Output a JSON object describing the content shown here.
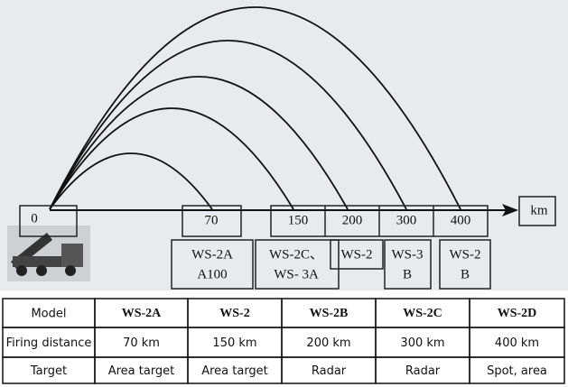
{
  "diagram": {
    "ranges": [
      "0",
      "70",
      "150",
      "200",
      "300",
      "400"
    ],
    "unit": "km",
    "models": [
      [
        "WS-2A",
        "A100"
      ],
      [
        "WS-2C、",
        "WS- 3A"
      ],
      [
        "WS-2"
      ],
      [
        "WS-3",
        "B"
      ],
      [
        "WS-2",
        "B"
      ]
    ]
  },
  "table": {
    "rows": [
      [
        "Model",
        "WS-2A",
        "WS-2",
        "WS-2B",
        "WS-2C",
        "WS-2D"
      ],
      [
        "Firing distance",
        "70 km",
        "150 km",
        "200 km",
        "300 km",
        "400 km"
      ],
      [
        "Target",
        "Area target",
        "Area target",
        "Radar",
        "Radar",
        "Spot, area"
      ]
    ]
  }
}
